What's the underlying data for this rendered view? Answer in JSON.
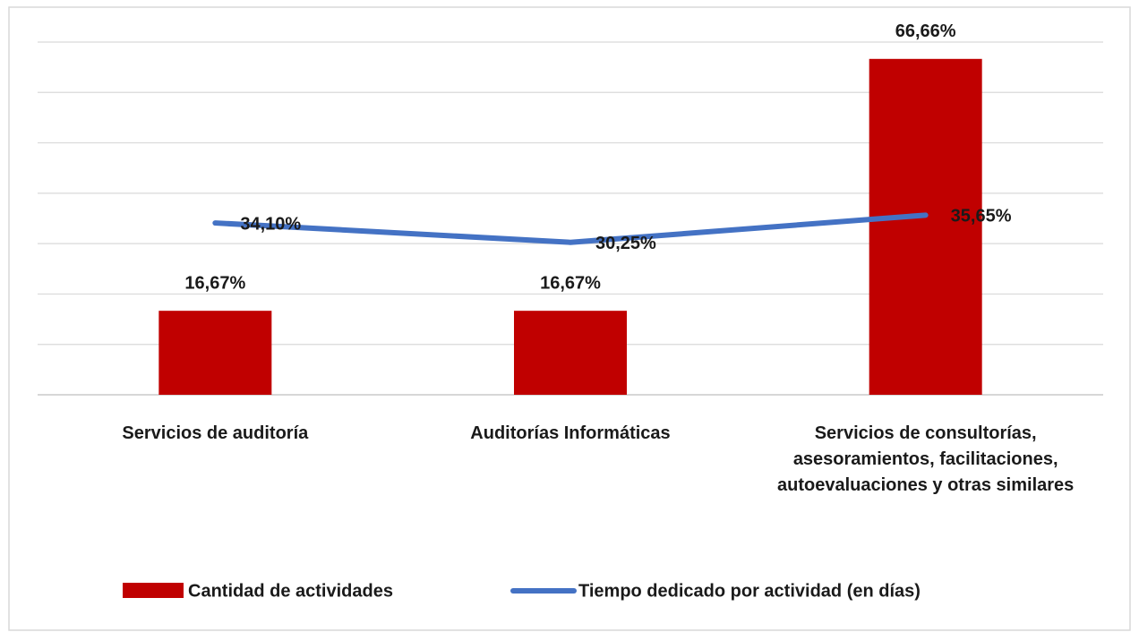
{
  "chart_data": {
    "type": "combo",
    "categories": [
      "Servicios de auditoría",
      "Auditorías Informáticas",
      "Servicios de consultorías, asesoramientos, facilitaciones, autoevaluaciones y otras similares"
    ],
    "series": [
      {
        "name": "Cantidad de actividades",
        "type": "bar",
        "color": "#c00000",
        "values": [
          16.67,
          16.67,
          66.66
        ],
        "value_labels": [
          "16,67%",
          "16,67%",
          "66,66%"
        ]
      },
      {
        "name": "Tiempo dedicado por actividad (en días)",
        "type": "line",
        "color": "#4472c4",
        "values": [
          34.1,
          30.25,
          35.65
        ],
        "value_labels": [
          "34,10%",
          "30,25%",
          "35,65%"
        ]
      }
    ],
    "ylim": [
      0,
      70
    ],
    "yticks": [
      0,
      10,
      20,
      30,
      40,
      50,
      60,
      70
    ],
    "grid": true,
    "legend": "bottom"
  }
}
